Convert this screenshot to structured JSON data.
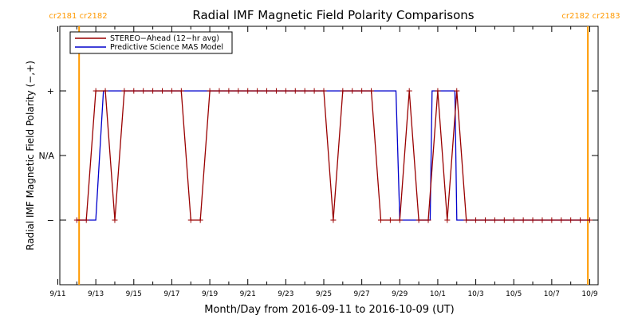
{
  "chart_data": {
    "type": "line",
    "title": "Radial IMF Magnetic Field Polarity Comparisons",
    "xlabel": "Month/Day from 2016-09-11 to 2016-10-09 (UT)",
    "ylabel": "Radial IMF Magnetic Field Polarity (−,+)",
    "xlim_days": [
      0,
      28
    ],
    "ylim": [
      -2,
      2
    ],
    "x_ticks": [
      {
        "day": 0,
        "label": "9/11"
      },
      {
        "day": 2,
        "label": "9/13"
      },
      {
        "day": 4,
        "label": "9/15"
      },
      {
        "day": 6,
        "label": "9/17"
      },
      {
        "day": 8,
        "label": "9/19"
      },
      {
        "day": 10,
        "label": "9/21"
      },
      {
        "day": 12,
        "label": "9/23"
      },
      {
        "day": 14,
        "label": "9/25"
      },
      {
        "day": 16,
        "label": "9/27"
      },
      {
        "day": 18,
        "label": "9/29"
      },
      {
        "day": 20,
        "label": "10/1"
      },
      {
        "day": 22,
        "label": "10/3"
      },
      {
        "day": 24,
        "label": "10/5"
      },
      {
        "day": 26,
        "label": "10/7"
      },
      {
        "day": 28,
        "label": "10/9"
      }
    ],
    "y_ticks": [
      {
        "value": 1,
        "label": "+"
      },
      {
        "value": 0,
        "label": "N/A"
      },
      {
        "value": -1,
        "label": "−"
      }
    ],
    "rotation_markers": [
      {
        "day": 1.12,
        "label": "cr2181 cr2182",
        "color": "#ff9900"
      },
      {
        "day": 27.9,
        "label": "cr2182 cr2183",
        "color": "#ff9900"
      }
    ],
    "legend": {
      "position": "top-left"
    },
    "series": [
      {
        "name": "STEREO−Ahead (12−hr avg)",
        "color": "#990000",
        "markers": true,
        "x": [
          1.0,
          1.5,
          2.0,
          2.5,
          3.0,
          3.5,
          4.0,
          4.5,
          5.0,
          5.5,
          6.0,
          6.5,
          7.0,
          7.5,
          8.0,
          8.5,
          9.0,
          9.5,
          10.0,
          10.5,
          11.0,
          11.5,
          12.0,
          12.5,
          13.0,
          13.5,
          14.0,
          14.5,
          15.0,
          15.5,
          16.0,
          16.5,
          17.0,
          17.5,
          18.0,
          18.5,
          19.0,
          19.5,
          20.0,
          20.5,
          21.0,
          21.5,
          22.0,
          22.5,
          23.0,
          23.5,
          24.0,
          24.5,
          25.0,
          25.5,
          26.0,
          26.5,
          27.0,
          27.5,
          28.0
        ],
        "y": [
          -1,
          -1,
          1,
          1,
          -1,
          1,
          1,
          1,
          1,
          1,
          1,
          1,
          -1,
          -1,
          1,
          1,
          1,
          1,
          1,
          1,
          1,
          1,
          1,
          1,
          1,
          1,
          1,
          -1,
          1,
          1,
          1,
          1,
          -1,
          -1,
          -1,
          1,
          -1,
          -1,
          1,
          -1,
          1,
          -1,
          -1,
          -1,
          -1,
          -1,
          -1,
          -1,
          -1,
          -1,
          -1,
          -1,
          -1,
          -1,
          -1
        ]
      },
      {
        "name": "Predictive Science MAS Model",
        "color": "#0000cc",
        "markers": false,
        "x": [
          1.0,
          2.0,
          2.4,
          17.8,
          18.0,
          19.6,
          19.7,
          20.0,
          20.9,
          21.0,
          21.3,
          28.0
        ],
        "y": [
          -1,
          -1,
          1,
          1,
          -1,
          -1,
          1,
          1,
          1,
          -1,
          -1,
          -1
        ]
      }
    ]
  }
}
